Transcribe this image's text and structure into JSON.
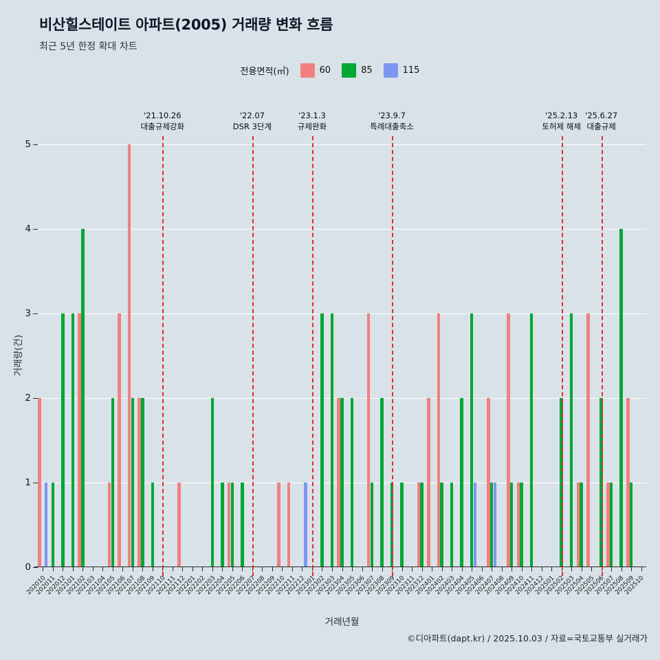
{
  "header": {
    "title": "비산힐스테이트 아파트(2005) 거래량 변화 흐름",
    "subtitle": "최근 5년 한정 확대 차트"
  },
  "legend": {
    "label": "전용면적(㎡)",
    "items": [
      {
        "label": "60",
        "color": "#F08080"
      },
      {
        "label": "85",
        "color": "#00A733"
      },
      {
        "label": "115",
        "color": "#7D97F0"
      }
    ]
  },
  "axes": {
    "x_title": "거래년월",
    "y_title": "거래량(건)"
  },
  "footer": {
    "credit": "©디아파트(dapt.kr) / 2025.10.03 / 자료=국토교통부 실거래가"
  },
  "chart_data": {
    "type": "bar",
    "title": "비산힐스테이트 아파트(2005) 거래량 변화 흐름",
    "subtitle": "최근 5년 한정 확대 차트",
    "xlabel": "거래년월",
    "ylabel": "거래량(건)",
    "ylim": [
      0,
      5
    ],
    "yticks": [
      0,
      1,
      2,
      3,
      4,
      5
    ],
    "grid": true,
    "legend_position": "top",
    "legend_title": "전용면적(㎡)",
    "background": "#D9E2E8",
    "event_line_color": "#E02C2C",
    "categories": [
      "202010",
      "202011",
      "202012",
      "202101",
      "202102",
      "202103",
      "202104",
      "202105",
      "202106",
      "202107",
      "202108",
      "202109",
      "202110",
      "202111",
      "202112",
      "202201",
      "202202",
      "202203",
      "202204",
      "202205",
      "202206",
      "202207",
      "202208",
      "202209",
      "202210",
      "202211",
      "202212",
      "202301",
      "202302",
      "202303",
      "202304",
      "202305",
      "202306",
      "202307",
      "202308",
      "202309",
      "202310",
      "202311",
      "202312",
      "202401",
      "202402",
      "202403",
      "202404",
      "202405",
      "202406",
      "202407",
      "202408",
      "202409",
      "202410",
      "202411",
      "202412",
      "202501",
      "202502",
      "202503",
      "202504",
      "202505",
      "202506",
      "202507",
      "202508",
      "202509",
      "202510"
    ],
    "series": [
      {
        "name": "60",
        "color": "#F08080",
        "values": [
          2,
          0,
          0,
          0,
          3,
          0,
          0,
          1,
          3,
          5,
          2,
          0,
          0,
          0,
          1,
          0,
          0,
          0,
          0,
          1,
          0,
          0,
          0,
          0,
          1,
          1,
          0,
          0,
          0,
          0,
          2,
          0,
          0,
          3,
          0,
          0,
          0,
          0,
          1,
          2,
          3,
          0,
          0,
          0,
          0,
          2,
          0,
          3,
          1,
          0,
          0,
          0,
          0,
          0,
          1,
          3,
          0,
          1,
          0,
          2,
          0
        ]
      },
      {
        "name": "85",
        "color": "#00A733",
        "values": [
          0,
          1,
          3,
          3,
          4,
          0,
          0,
          2,
          0,
          2,
          2,
          1,
          0,
          0,
          0,
          0,
          0,
          2,
          1,
          1,
          1,
          0,
          0,
          0,
          0,
          0,
          0,
          0,
          3,
          3,
          2,
          2,
          0,
          1,
          2,
          1,
          1,
          0,
          1,
          0,
          1,
          1,
          2,
          3,
          0,
          1,
          0,
          1,
          1,
          3,
          0,
          0,
          2,
          3,
          1,
          0,
          2,
          1,
          4,
          1,
          0
        ]
      },
      {
        "name": "115",
        "color": "#7D97F0",
        "values": [
          1,
          0,
          0,
          0,
          0,
          0,
          0,
          0,
          0,
          0,
          0,
          0,
          0,
          0,
          0,
          0,
          0,
          0,
          0,
          0,
          0,
          0,
          0,
          0,
          0,
          0,
          1,
          0,
          0,
          0,
          0,
          0,
          0,
          0,
          0,
          0,
          0,
          0,
          0,
          0,
          0,
          0,
          0,
          1,
          0,
          1,
          0,
          0,
          0,
          0,
          0,
          0,
          0,
          0,
          0,
          0,
          0,
          0,
          0,
          0,
          0
        ]
      }
    ],
    "event_lines": [
      {
        "month": "202110",
        "date": "'21.10.26",
        "label": "대출규제강화"
      },
      {
        "month": "202207",
        "date": "'22.07",
        "label": "DSR 3단계"
      },
      {
        "month": "202301",
        "date": "'23.1.3",
        "label": "규제완화"
      },
      {
        "month": "202309",
        "date": "'23.9.7",
        "label": "특례대출축소"
      },
      {
        "month": "202502",
        "date": "'25.2.13",
        "label": "토허제 해제"
      },
      {
        "month": "202506",
        "date": "'25.6.27",
        "label": "대출규제"
      }
    ]
  }
}
